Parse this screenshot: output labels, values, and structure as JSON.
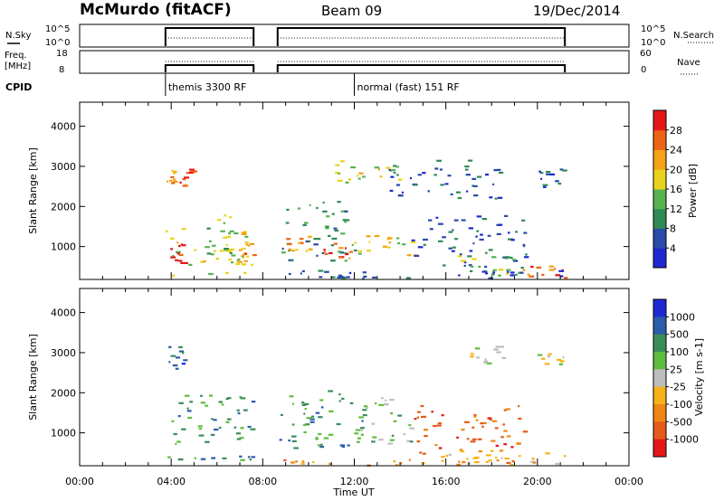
{
  "header": {
    "station": "McMurdo (fitACF)",
    "beam": "Beam 09",
    "date": "19/Dec/2014"
  },
  "summary_panels": {
    "nsky": {
      "label": "N.Sky",
      "ticks": [
        "10^5",
        "10^0"
      ]
    },
    "nsearch": {
      "label": "N.Search",
      "ticks": [
        "10^5",
        "10^0"
      ]
    },
    "freq": {
      "label_lines": [
        "Freq.",
        "[MHz]"
      ],
      "ticks": [
        "18",
        "8"
      ]
    },
    "nave": {
      "label": "Nave",
      "ticks": [
        "60",
        "0"
      ]
    },
    "cpid": {
      "label": "CPID",
      "programs": [
        {
          "name": "themis 3300 RF",
          "start_hour": 3.75
        },
        {
          "name": "normal (fast) 151 RF",
          "start_hour": 12.0
        }
      ]
    },
    "data_gap_hours": [
      [
        0,
        3.75
      ],
      [
        7.6,
        8.65
      ],
      [
        21.2,
        24
      ]
    ]
  },
  "chart_data": [
    {
      "type": "heatmap",
      "panel": "power",
      "title": "",
      "xlabel": "",
      "ylabel": "Slant Range [km]",
      "xlim": [
        0,
        24
      ],
      "ylim": [
        180,
        4600
      ],
      "y_ticks": [
        1000,
        2000,
        3000,
        4000
      ],
      "colorbar": {
        "label": "Power [dB]",
        "ticks": [
          "4",
          "8",
          "12",
          "16",
          "20",
          "24",
          "28"
        ],
        "colors": [
          "#1e28d2",
          "#284aa8",
          "#2f8a55",
          "#57b252",
          "#e9d21b",
          "#f5a214",
          "#ee6415",
          "#e41818"
        ]
      },
      "regions": [
        {
          "x": [
            3.75,
            7.5
          ],
          "y": [
            300,
            1500
          ],
          "level": 4
        },
        {
          "x": [
            3.8,
            4.6
          ],
          "y": [
            600,
            1100
          ],
          "level": 7
        },
        {
          "x": [
            6.8,
            7.55
          ],
          "y": [
            600,
            1100
          ],
          "level": 6
        },
        {
          "x": [
            4.2,
            5.0
          ],
          "y": [
            2500,
            3000
          ],
          "level": 6
        },
        {
          "x": [
            3.8,
            4.1
          ],
          "y": [
            2600,
            2950
          ],
          "level": 5
        },
        {
          "x": [
            5.5,
            6.6
          ],
          "y": [
            800,
            1900
          ],
          "level": 3
        },
        {
          "x": [
            8.7,
            12.0
          ],
          "y": [
            600,
            2200
          ],
          "level": 2
        },
        {
          "x": [
            9.0,
            10.3
          ],
          "y": [
            800,
            1300
          ],
          "level": 5
        },
        {
          "x": [
            10.5,
            11.8
          ],
          "y": [
            700,
            1100
          ],
          "level": 6
        },
        {
          "x": [
            11.8,
            14.8
          ],
          "y": [
            800,
            1300
          ],
          "level": 4
        },
        {
          "x": [
            11.0,
            14.0
          ],
          "y": [
            2600,
            3200
          ],
          "level": 4
        },
        {
          "x": [
            13.5,
            18.5
          ],
          "y": [
            2200,
            3200
          ],
          "level": 1
        },
        {
          "x": [
            14.5,
            19.5
          ],
          "y": [
            500,
            1800
          ],
          "level": 1
        },
        {
          "x": [
            16.5,
            19.5
          ],
          "y": [
            300,
            800
          ],
          "level": 3
        },
        {
          "x": [
            19.3,
            21.2
          ],
          "y": [
            200,
            600
          ],
          "level": 6
        },
        {
          "x": [
            20.0,
            21.1
          ],
          "y": [
            2500,
            3000
          ],
          "level": 1
        },
        {
          "x": [
            8.7,
            21.2
          ],
          "y": [
            200,
            450
          ],
          "level": 1
        }
      ]
    },
    {
      "type": "heatmap",
      "panel": "velocity",
      "title": "",
      "xlabel": "Time UT",
      "ylabel": "Slant Range [km]",
      "xlim": [
        0,
        24
      ],
      "x_ticks": [
        "00:00",
        "04:00",
        "08:00",
        "12:00",
        "16:00",
        "20:00",
        "00:00"
      ],
      "ylim": [
        180,
        4600
      ],
      "y_ticks": [
        1000,
        2000,
        3000,
        4000
      ],
      "colorbar": {
        "label": "Velocity [m s-1]",
        "ticks": [
          "1000",
          "500",
          "100",
          "25",
          "-25",
          "-100",
          "-500",
          "-1000"
        ],
        "colors": [
          "#1e28d2",
          "#2c5da8",
          "#3c8c5a",
          "#5fbd3d",
          "#bdbdbd",
          "#f6b218",
          "#ef8612",
          "#e45a1a",
          "#e41818"
        ]
      },
      "regions": [
        {
          "x": [
            3.75,
            7.55
          ],
          "y": [
            700,
            2000
          ],
          "level": 2
        },
        {
          "x": [
            3.75,
            7.55
          ],
          "y": [
            300,
            450
          ],
          "level": 2
        },
        {
          "x": [
            3.8,
            4.6
          ],
          "y": [
            2600,
            3200
          ],
          "level": 1
        },
        {
          "x": [
            8.7,
            12.4
          ],
          "y": [
            600,
            2100
          ],
          "level": 2
        },
        {
          "x": [
            12.0,
            14.5
          ],
          "y": [
            700,
            1900
          ],
          "level": 3
        },
        {
          "x": [
            14.5,
            19.5
          ],
          "y": [
            500,
            1700
          ],
          "level": 7
        },
        {
          "x": [
            17.0,
            18.5
          ],
          "y": [
            2700,
            3200
          ],
          "level": 4
        },
        {
          "x": [
            20.0,
            21.1
          ],
          "y": [
            2600,
            3000
          ],
          "level": 4
        },
        {
          "x": [
            15.0,
            21.2
          ],
          "y": [
            250,
            600
          ],
          "level": 5
        },
        {
          "x": [
            8.7,
            21.2
          ],
          "y": [
            200,
            350
          ],
          "level": 6
        }
      ]
    }
  ]
}
